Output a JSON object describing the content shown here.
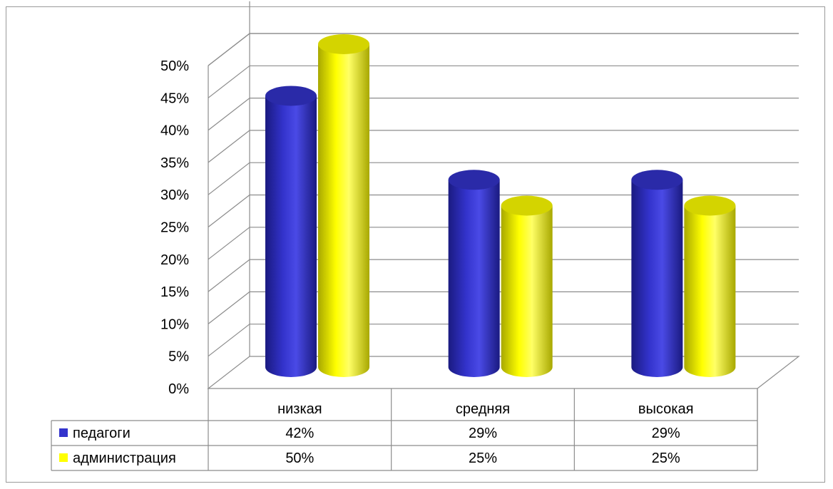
{
  "chart_data": {
    "type": "bar",
    "categories": [
      "низкая",
      "средняя",
      "высокая"
    ],
    "series": [
      {
        "name": "педагоги",
        "values": [
          42,
          29,
          29
        ],
        "labels": [
          "42%",
          "29%",
          "29%"
        ],
        "color": "#3333cc"
      },
      {
        "name": "администрация",
        "values": [
          50,
          25,
          25
        ],
        "labels": [
          "50%",
          "25%",
          "25%"
        ],
        "color": "#ffff00"
      }
    ],
    "yticks": [
      "0%",
      "5%",
      "10%",
      "15%",
      "20%",
      "25%",
      "30%",
      "35%",
      "40%",
      "45%",
      "50%"
    ],
    "ylim": [
      0,
      55
    ],
    "grid": true,
    "style": "3d-cylinder",
    "data_table": true
  }
}
